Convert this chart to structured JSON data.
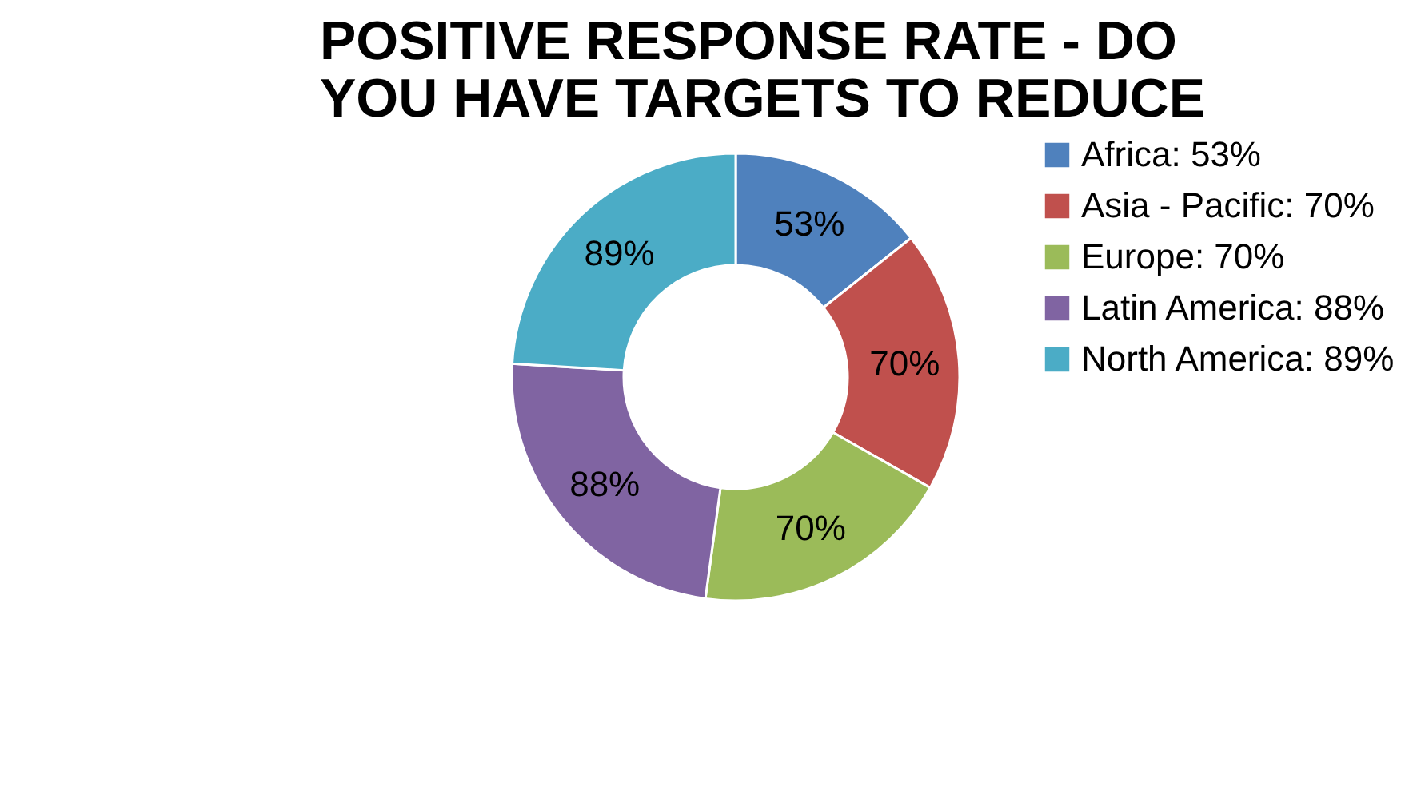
{
  "chart_data": {
    "type": "donut",
    "title": "POSITIVE RESPONSE RATE - DO YOU HAVE TARGETS TO REDUCE",
    "categories": [
      "Africa: 53%",
      "Asia - Pacific: 70%",
      "Europe: 70%",
      "Latin America: 88%",
      "North America: 89%"
    ],
    "values": [
      53,
      70,
      70,
      88,
      89
    ],
    "colors": [
      "#4f81bd",
      "#c0504d",
      "#9bbb59",
      "#8064a2",
      "#4bacc6"
    ],
    "value_labels": [
      "53%",
      "70%",
      "70%",
      "88%",
      "89%"
    ],
    "legend": "right"
  }
}
